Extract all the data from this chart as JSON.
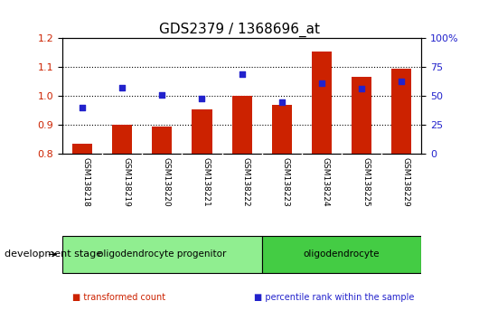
{
  "title": "GDS2379 / 1368696_at",
  "samples": [
    "GSM138218",
    "GSM138219",
    "GSM138220",
    "GSM138221",
    "GSM138222",
    "GSM138223",
    "GSM138224",
    "GSM138225",
    "GSM138229"
  ],
  "red_values": [
    0.835,
    0.9,
    0.895,
    0.955,
    1.002,
    0.97,
    1.155,
    1.065,
    1.095
  ],
  "blue_values": [
    0.96,
    1.03,
    1.005,
    0.99,
    1.075,
    0.98,
    1.045,
    1.025,
    1.05
  ],
  "red_base": 0.8,
  "ylim_left": [
    0.8,
    1.2
  ],
  "ylim_right": [
    0,
    100
  ],
  "yticks_left": [
    0.8,
    0.9,
    1.0,
    1.1,
    1.2
  ],
  "yticks_right": [
    0,
    25,
    50,
    75,
    100
  ],
  "ytick_labels_right": [
    "0",
    "25",
    "50",
    "75",
    "100%"
  ],
  "groups": [
    {
      "label": "oligodendrocyte progenitor",
      "start": 0,
      "end": 4,
      "color": "#90EE90"
    },
    {
      "label": "oligodendrocyte",
      "start": 5,
      "end": 8,
      "color": "#44CC44"
    }
  ],
  "bar_color": "#CC2200",
  "dot_color": "#2222CC",
  "bar_width": 0.5,
  "tick_area_color": "#CCCCCC",
  "legend_items": [
    {
      "label": "transformed count",
      "color": "#CC2200"
    },
    {
      "label": "percentile rank within the sample",
      "color": "#2222CC"
    }
  ],
  "dev_stage_label": "development stage",
  "left_axis_color": "#CC2200",
  "right_axis_color": "#2222CC"
}
